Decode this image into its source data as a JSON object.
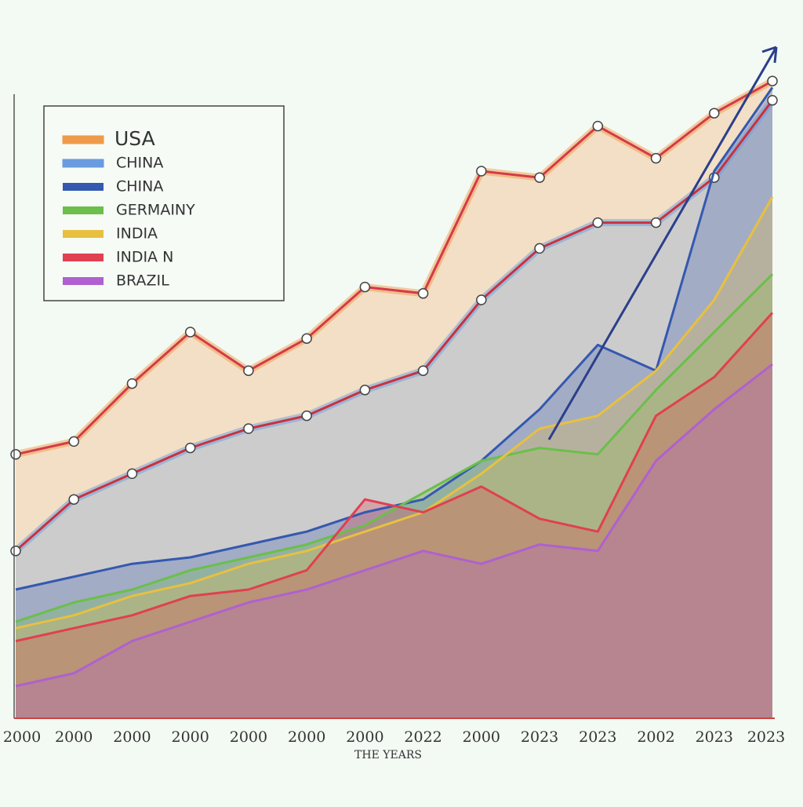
{
  "chart_data": {
    "type": "line",
    "categories": [
      "2000",
      "2000",
      "2000",
      "2000",
      "2000",
      "2000",
      "2000",
      "2022",
      "2000",
      "2023",
      "2023",
      "2002",
      "2023",
      "2023"
    ],
    "xlabel": "THE YEARS",
    "ylim": [
      0,
      100
    ],
    "series": [
      {
        "name": "USA",
        "color": "#ef9a4a",
        "line_color": "#d43a4a",
        "markers": true,
        "values": [
          41,
          43,
          52,
          60,
          54,
          59,
          67,
          66,
          85,
          84,
          92,
          87,
          94,
          99
        ]
      },
      {
        "name": "CHINA",
        "color": "#6a9be0",
        "line_color": "#c8323e",
        "markers": true,
        "values": [
          26,
          34,
          38,
          42,
          45,
          47,
          51,
          54,
          65,
          73,
          77,
          77,
          84,
          96
        ]
      },
      {
        "name": "CHINA",
        "color": "#3558b0",
        "values": [
          20,
          22,
          24,
          25,
          27,
          29,
          32,
          34,
          40,
          48,
          58,
          54,
          85,
          98
        ]
      },
      {
        "name": "GERMAINY",
        "color": "#6bbf4a",
        "values": [
          15,
          18,
          20,
          23,
          25,
          27,
          30,
          35,
          40,
          42,
          41,
          51,
          60,
          69
        ]
      },
      {
        "name": "INDIA",
        "color": "#e8c040",
        "values": [
          14,
          16,
          19,
          21,
          24,
          26,
          29,
          32,
          38,
          45,
          47,
          54,
          65,
          81
        ]
      },
      {
        "name": "INDIA N",
        "color": "#e04050",
        "values": [
          12,
          14,
          16,
          19,
          20,
          23,
          34,
          32,
          36,
          31,
          29,
          47,
          53,
          63
        ]
      },
      {
        "name": "BRAZIL",
        "color": "#b060d0",
        "values": [
          5,
          7,
          12,
          15,
          18,
          20,
          23,
          26,
          24,
          27,
          26,
          40,
          48,
          55
        ]
      }
    ]
  }
}
